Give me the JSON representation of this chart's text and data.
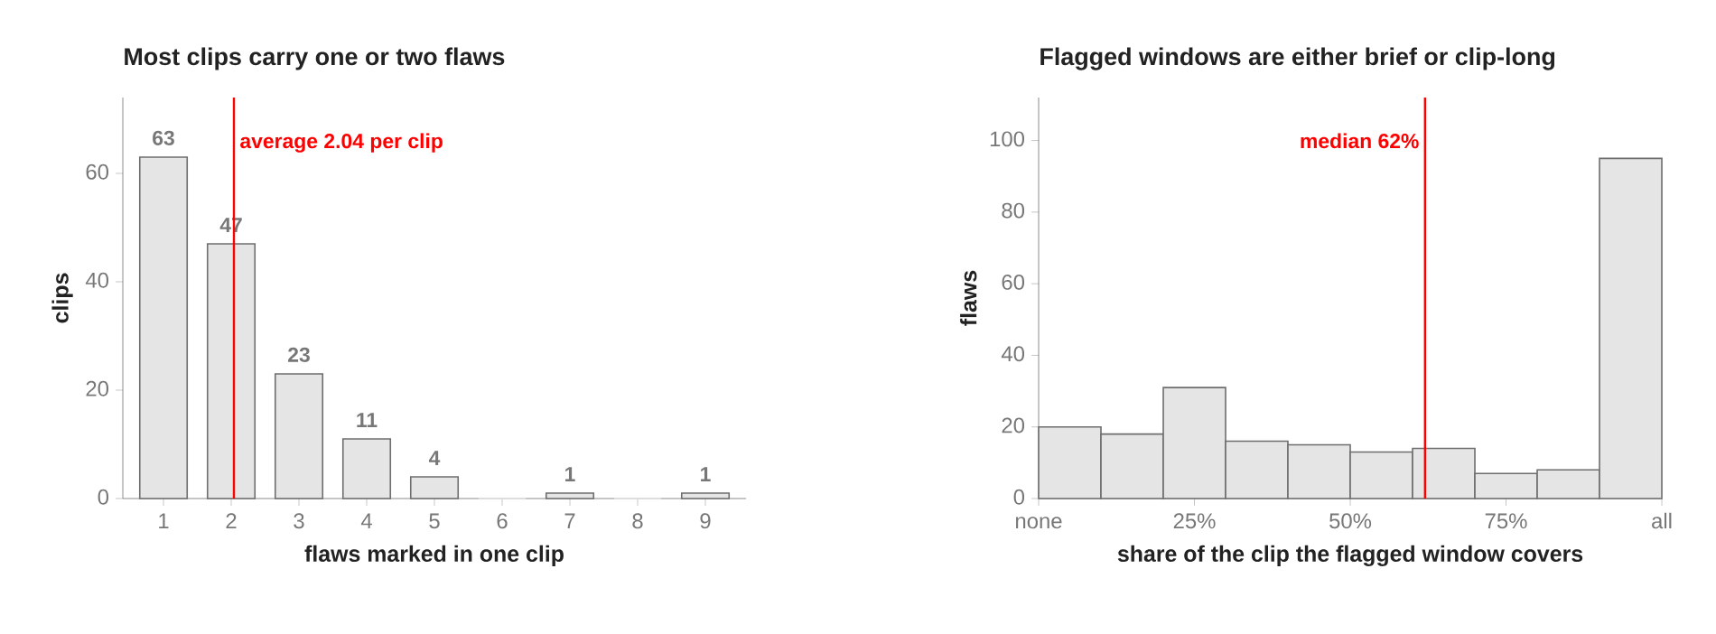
{
  "chart_data": [
    {
      "type": "bar",
      "title": "Most clips carry one or two flaws",
      "xlabel": "flaws marked in one clip",
      "ylabel": "clips",
      "x": [
        1,
        2,
        3,
        4,
        5,
        6,
        7,
        8,
        9
      ],
      "values": [
        63,
        47,
        23,
        11,
        4,
        0,
        1,
        0,
        1
      ],
      "value_labels": [
        "63",
        "47",
        "23",
        "11",
        "4",
        null,
        "1",
        null,
        "1"
      ],
      "color": "#e5e5e5",
      "xlim": [
        0.4,
        9.6
      ],
      "xticks": [
        1,
        2,
        3,
        4,
        5,
        6,
        7,
        8,
        9
      ],
      "ylim": [
        0,
        74
      ],
      "yticks": [
        0,
        20,
        40,
        60
      ],
      "ref_lines": [
        {
          "axis": "x",
          "value": 2.04,
          "label": "average 2.04 per clip",
          "color": "#ff0000"
        }
      ]
    },
    {
      "type": "histogram",
      "title": "Flagged windows are either brief or clip-long",
      "xlabel": "share of the clip the flagged window covers",
      "ylabel": "flaws",
      "bins": [
        0,
        10,
        20,
        30,
        40,
        50,
        60,
        70,
        80,
        90,
        100
      ],
      "values": [
        20,
        18,
        31,
        16,
        15,
        13,
        14,
        7,
        8,
        95
      ],
      "color": "#e5e5e5",
      "xlim": [
        0,
        100
      ],
      "xticks": [
        {
          "value": 0,
          "label": "none"
        },
        {
          "value": 25,
          "label": "25%"
        },
        {
          "value": 50,
          "label": "50%"
        },
        {
          "value": 75,
          "label": "75%"
        },
        {
          "value": 100,
          "label": "all"
        }
      ],
      "ylim": [
        0,
        112
      ],
      "yticks": [
        0,
        20,
        40,
        60,
        80,
        100
      ],
      "ref_lines": [
        {
          "axis": "x",
          "value": 62,
          "label": "median 62%",
          "color": "#ff0000"
        }
      ]
    }
  ]
}
